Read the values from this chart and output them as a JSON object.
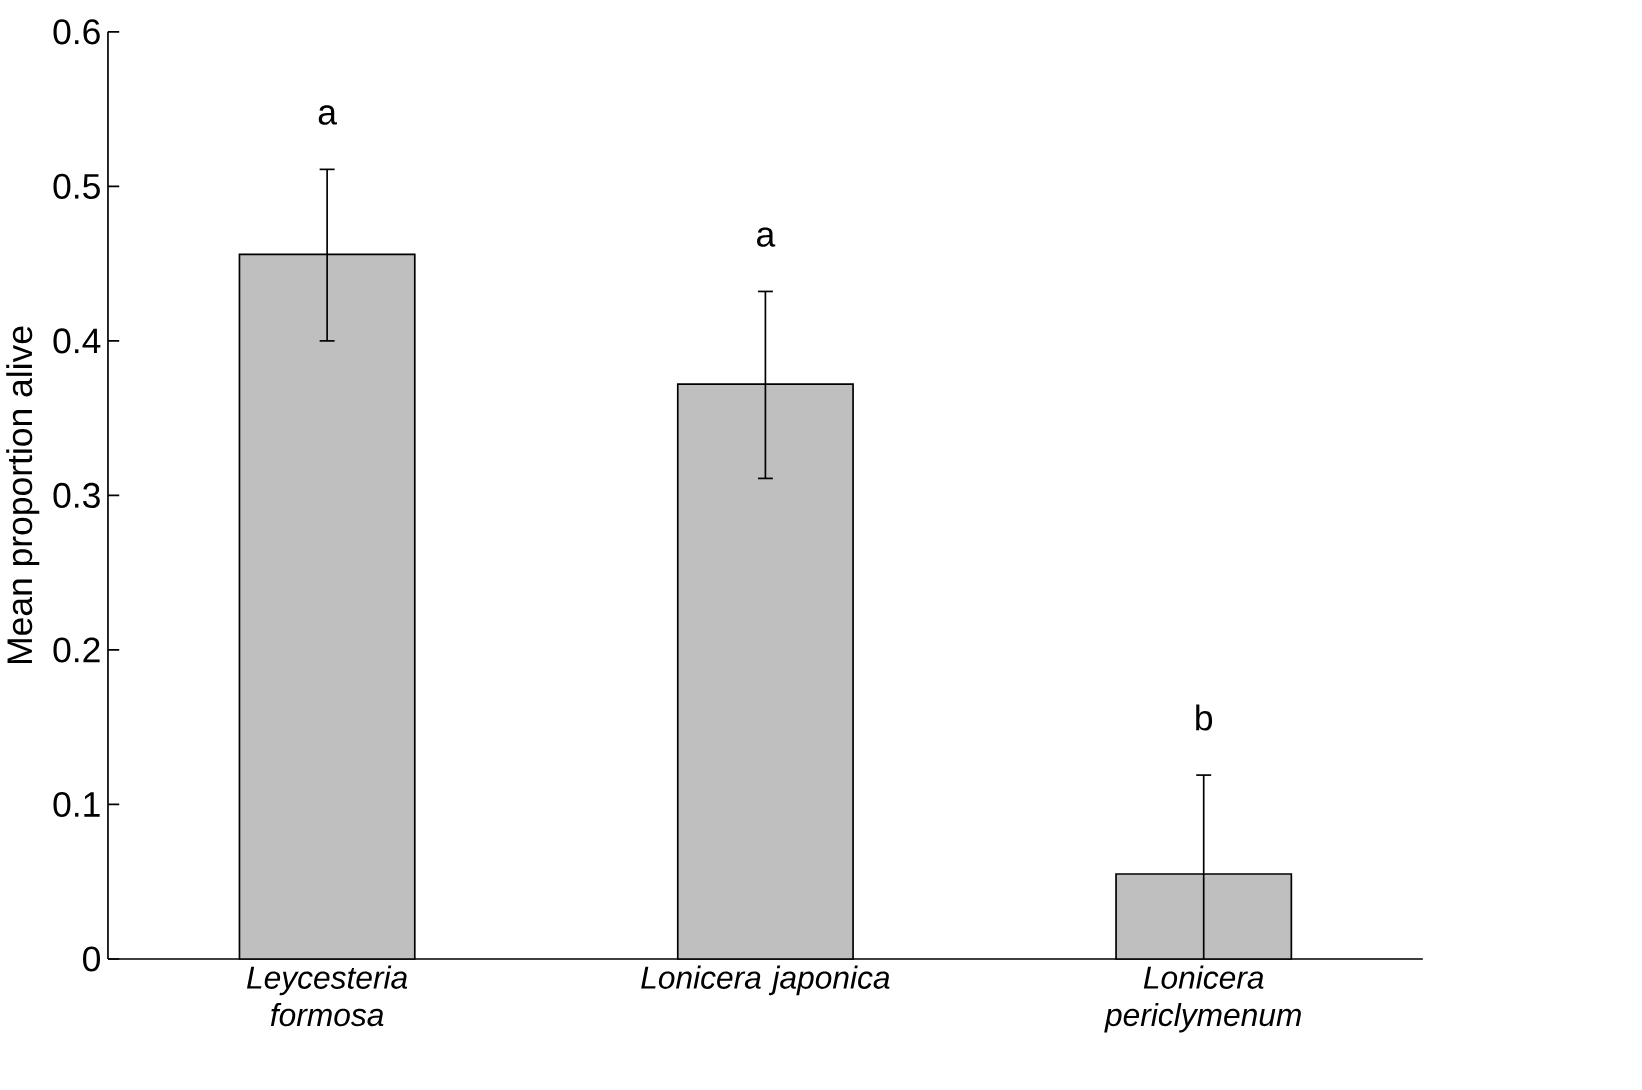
{
  "chart_data": {
    "type": "bar",
    "ylabel": "Mean proportion alive",
    "categories": [
      "Leycesteria formosa",
      "Lonicera japonica",
      "Lonicera periclymenum"
    ],
    "values": [
      0.456,
      0.372,
      0.055
    ],
    "color": "#bfbfbf",
    "errors": [
      [
        0.4,
        0.511
      ],
      [
        0.311,
        0.432
      ],
      [
        0,
        0.119
      ]
    ],
    "ylim": [
      0,
      0.6
    ],
    "yticks": [
      0,
      0.1,
      0.2,
      0.3,
      0.4,
      0.5,
      0.6
    ],
    "annotations": [
      "a",
      "a",
      "b"
    ]
  }
}
